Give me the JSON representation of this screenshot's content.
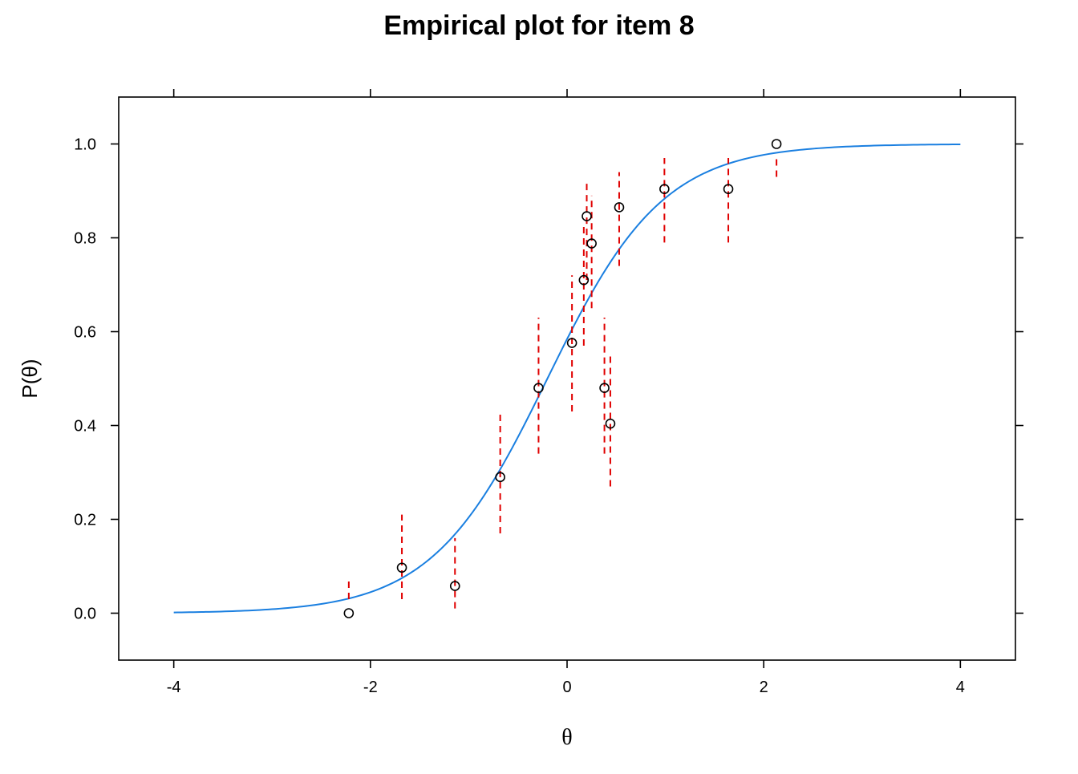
{
  "chart_data": {
    "type": "scatter",
    "title": "Empirical plot for item 8",
    "xlabel": "θ",
    "ylabel": "P(θ)",
    "xlim": [
      -4.56,
      4.56
    ],
    "ylim": [
      -0.1,
      1.1
    ],
    "x_ticks": [
      -4,
      -2,
      0,
      2,
      4
    ],
    "x_tick_labels": [
      "-4",
      "-2",
      "0",
      "2",
      "4"
    ],
    "y_ticks": [
      0.0,
      0.2,
      0.4,
      0.6,
      0.8,
      1.0
    ],
    "y_tick_labels": [
      "0.0",
      "0.2",
      "0.4",
      "0.6",
      "0.8",
      "1.0"
    ],
    "grid": false,
    "colors": {
      "curve": "#1a7fe0",
      "error_bars": "#e00000",
      "points": "#000000"
    },
    "curve": {
      "model": "logistic",
      "a": 1.7,
      "b": -0.2,
      "x_range": [
        -4,
        4
      ]
    },
    "points": [
      {
        "x": -2.22,
        "y": 0.0,
        "lo": 0.03,
        "hi": 0.07
      },
      {
        "x": -1.68,
        "y": 0.097,
        "lo": 0.03,
        "hi": 0.21
      },
      {
        "x": -1.14,
        "y": 0.058,
        "lo": 0.01,
        "hi": 0.16
      },
      {
        "x": -0.68,
        "y": 0.29,
        "lo": 0.17,
        "hi": 0.43
      },
      {
        "x": -0.29,
        "y": 0.48,
        "lo": 0.34,
        "hi": 0.63
      },
      {
        "x": 0.05,
        "y": 0.576,
        "lo": 0.43,
        "hi": 0.72
      },
      {
        "x": 0.17,
        "y": 0.71,
        "lo": 0.57,
        "hi": 0.83
      },
      {
        "x": 0.2,
        "y": 0.846,
        "lo": 0.71,
        "hi": 0.92
      },
      {
        "x": 0.25,
        "y": 0.788,
        "lo": 0.65,
        "hi": 0.89
      },
      {
        "x": 0.38,
        "y": 0.48,
        "lo": 0.34,
        "hi": 0.63
      },
      {
        "x": 0.44,
        "y": 0.404,
        "lo": 0.27,
        "hi": 0.55
      },
      {
        "x": 0.53,
        "y": 0.865,
        "lo": 0.74,
        "hi": 0.94
      },
      {
        "x": 0.99,
        "y": 0.904,
        "lo": 0.79,
        "hi": 0.97
      },
      {
        "x": 1.64,
        "y": 0.904,
        "lo": 0.79,
        "hi": 0.97
      },
      {
        "x": 2.13,
        "y": 1.0,
        "lo": 0.93,
        "hi": 0.97
      }
    ]
  }
}
